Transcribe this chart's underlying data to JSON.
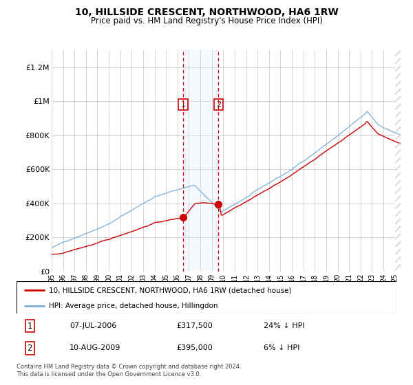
{
  "title": "10, HILLSIDE CRESCENT, NORTHWOOD, HA6 1RW",
  "subtitle": "Price paid vs. HM Land Registry's House Price Index (HPI)",
  "ylim": [
    0,
    1300000
  ],
  "yticks": [
    0,
    200000,
    400000,
    600000,
    800000,
    1000000,
    1200000
  ],
  "ytick_labels": [
    "£0",
    "£200K",
    "£400K",
    "£600K",
    "£800K",
    "£1M",
    "£1.2M"
  ],
  "sale1_price": 317500,
  "sale2_price": 395000,
  "legend_line1": "10, HILLSIDE CRESCENT, NORTHWOOD, HA6 1RW (detached house)",
  "legend_line2": "HPI: Average price, detached house, Hillingdon",
  "footer": "Contains HM Land Registry data © Crown copyright and database right 2024.\nThis data is licensed under the Open Government Licence v3.0.",
  "line_color_red": "#cc0000",
  "line_color_blue": "#7aadd4",
  "shading_color": "#ddeeff",
  "dashed_color": "#cc0000",
  "sale1_label": "1",
  "sale2_label": "2",
  "sale1_date": "07-JUL-2006",
  "sale2_date": "10-AUG-2009",
  "sale1_pct": "24% ↓ HPI",
  "sale2_pct": "6% ↓ HPI",
  "sale1_price_str": "£317,500",
  "sale2_price_str": "£395,000"
}
